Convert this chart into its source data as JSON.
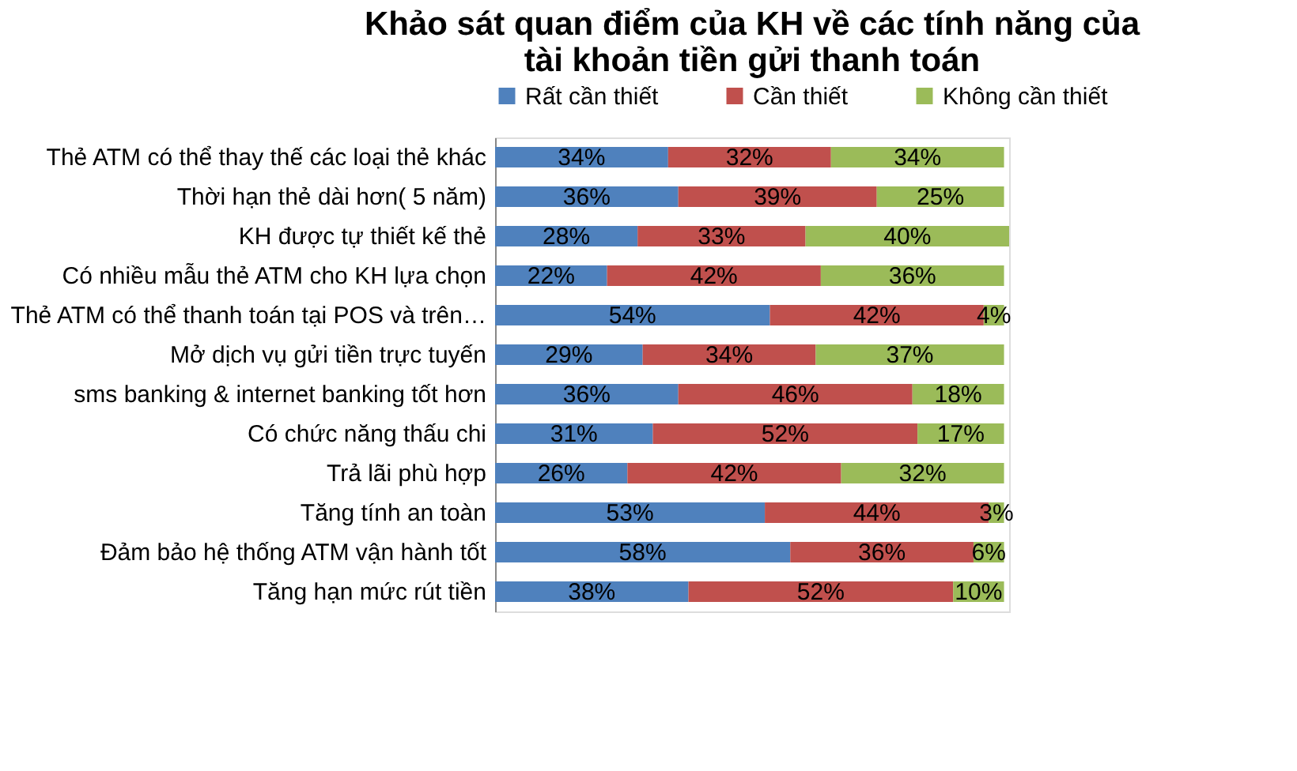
{
  "chart_data": {
    "type": "bar",
    "orientation": "horizontal",
    "stacked": true,
    "title": "Khảo sát quan điểm của KH về các tính năng của tài khoản tiền gửi thanh toán",
    "categories": [
      "Thẻ ATM có thể thay thế các loại thẻ khác",
      "Thời hạn thẻ dài hơn( 5 năm)",
      "KH được tự thiết kế thẻ ",
      "Có nhiều mẫu thẻ ATM cho KH lựa chọn",
      "Thẻ ATM có thể thanh toán tại POS và trên…",
      "Mở dịch vụ gửi tiền trực tuyến",
      "sms banking & internet banking tốt hơn",
      "Có chức năng thấu chi",
      "Trả lãi phù hợp",
      "Tăng tính an toàn",
      "Đảm bảo hệ thống ATM vận hành tốt",
      "Tăng hạn mức rút tiền"
    ],
    "series": [
      {
        "name": "Rất cần thiết",
        "color": "#4f81bd",
        "values": [
          34,
          36,
          28,
          22,
          54,
          29,
          36,
          31,
          26,
          53,
          58,
          38
        ],
        "value_labels": [
          "34%",
          "36%",
          "28%",
          "22%",
          "54%",
          "29%",
          "36%",
          "31%",
          "26%",
          "53%",
          "58%",
          "38%"
        ]
      },
      {
        "name": "Cần thiết",
        "color": "#c0504d",
        "values": [
          32,
          39,
          33,
          42,
          42,
          34,
          46,
          52,
          42,
          44,
          36,
          52
        ],
        "value_labels": [
          "32%",
          "39%",
          "33%",
          "42%",
          "42%",
          "34%",
          "46%",
          "52%",
          "42%",
          "44%",
          "36%",
          "52%"
        ]
      },
      {
        "name": "Không cần thiết",
        "color": "#9bbb59",
        "values": [
          34,
          25,
          40,
          36,
          4,
          37,
          18,
          17,
          32,
          3,
          6,
          10
        ],
        "value_labels": [
          "34%",
          "25%",
          "40%",
          "36%",
          "4%",
          "37%",
          "18%",
          "17%",
          "32%",
          "3%",
          "6%",
          "10%"
        ]
      }
    ],
    "legend": "top",
    "grid": false,
    "tick_labels": "y"
  }
}
